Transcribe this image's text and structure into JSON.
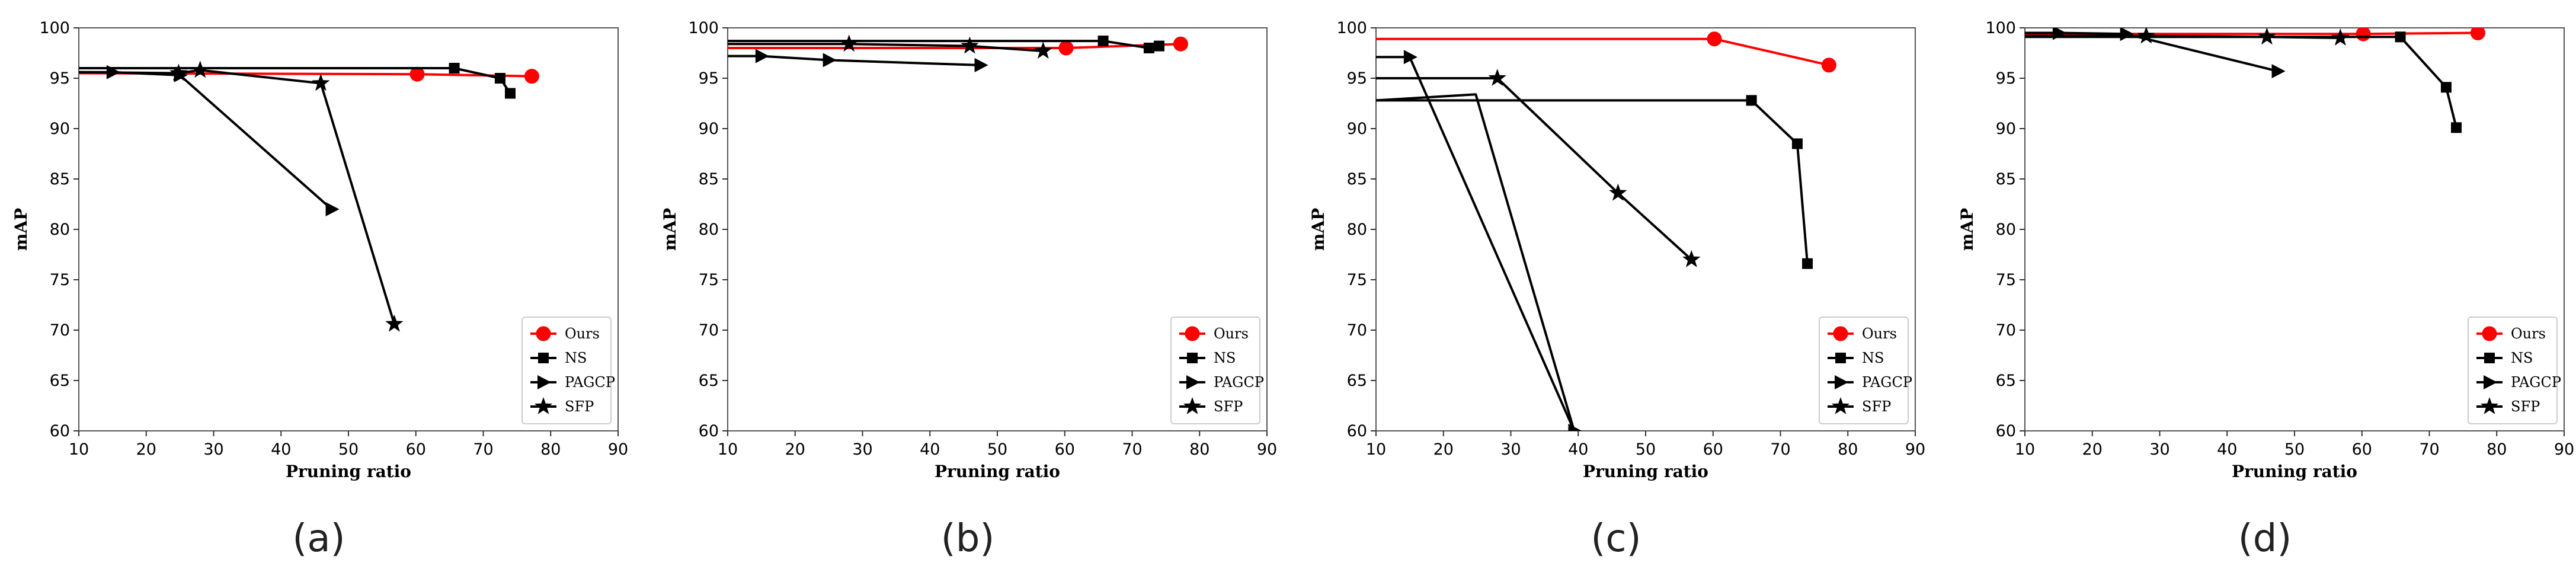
{
  "chart_data": [
    {
      "type": "line",
      "caption": "(a)",
      "xlabel": "Pruning ratio",
      "ylabel": "mAP",
      "xlim": [
        10,
        90
      ],
      "ylim": [
        60,
        100
      ],
      "xticks": [
        10,
        20,
        30,
        40,
        50,
        60,
        70,
        80,
        90
      ],
      "yticks": [
        60,
        65,
        70,
        75,
        80,
        85,
        90,
        95,
        100
      ],
      "legend": "bottom-right",
      "series": [
        {
          "name": "Ours",
          "marker": "circle",
          "color": "#ff0000",
          "x": [
            10,
            60.2,
            77.2
          ],
          "y": [
            95.5,
            95.4,
            95.2
          ]
        },
        {
          "name": "NS",
          "marker": "square",
          "color": "#000000",
          "x": [
            10,
            65.7,
            72.5,
            74
          ],
          "y": [
            96.0,
            96.0,
            95.0,
            93.5
          ]
        },
        {
          "name": "PAGCP",
          "marker": "triangle",
          "color": "#000000",
          "x": [
            10,
            15,
            25,
            47.5
          ],
          "y": [
            95.6,
            95.6,
            95.3,
            82.0
          ]
        },
        {
          "name": "SFP",
          "marker": "star",
          "color": "#000000",
          "x": [
            10,
            24.8,
            28,
            45.9,
            56.8
          ],
          "y": [
            95.6,
            95.5,
            95.8,
            94.5,
            70.6
          ]
        }
      ]
    },
    {
      "type": "line",
      "caption": "(b)",
      "xlabel": "Pruning ratio",
      "ylabel": "mAP",
      "xlim": [
        10,
        90
      ],
      "ylim": [
        60,
        100
      ],
      "xticks": [
        10,
        20,
        30,
        40,
        50,
        60,
        70,
        80,
        90
      ],
      "yticks": [
        60,
        65,
        70,
        75,
        80,
        85,
        90,
        95,
        100
      ],
      "legend": "bottom-right",
      "series": [
        {
          "name": "Ours",
          "marker": "circle",
          "color": "#ff0000",
          "x": [
            10,
            60.2,
            77.2
          ],
          "y": [
            98.0,
            98.0,
            98.4
          ]
        },
        {
          "name": "NS",
          "marker": "square",
          "color": "#000000",
          "x": [
            10,
            65.7,
            72.5,
            74
          ],
          "y": [
            98.7,
            98.7,
            98.0,
            98.2
          ]
        },
        {
          "name": "PAGCP",
          "marker": "triangle",
          "color": "#000000",
          "x": [
            10,
            15,
            25,
            47.5
          ],
          "y": [
            97.2,
            97.2,
            96.8,
            96.3
          ]
        },
        {
          "name": "SFP",
          "marker": "star",
          "color": "#000000",
          "x": [
            10,
            28,
            45.9,
            56.8
          ],
          "y": [
            98.4,
            98.4,
            98.2,
            97.7
          ]
        }
      ]
    },
    {
      "type": "line",
      "caption": "(c)",
      "xlabel": "Pruning ratio",
      "ylabel": "mAP",
      "xlim": [
        10,
        90
      ],
      "ylim": [
        60,
        100
      ],
      "xticks": [
        10,
        20,
        30,
        40,
        50,
        60,
        70,
        80,
        90
      ],
      "yticks": [
        60,
        65,
        70,
        75,
        80,
        85,
        90,
        95,
        100
      ],
      "legend": "bottom-right",
      "series": [
        {
          "name": "Ours",
          "marker": "circle",
          "color": "#ff0000",
          "x": [
            10,
            60.2,
            77.2
          ],
          "y": [
            98.9,
            98.9,
            96.3
          ]
        },
        {
          "name": "NS",
          "marker": "square",
          "color": "#000000",
          "x": [
            10,
            65.7,
            72.5,
            74
          ],
          "y": [
            92.8,
            92.8,
            88.5,
            76.6
          ]
        },
        {
          "name": "PAGCP",
          "marker": "triangle",
          "color": "#000000",
          "x": [
            10,
            15,
            39.4
          ],
          "y": [
            97.1,
            97.1,
            60.0
          ]
        },
        {
          "name": "SFP",
          "marker": "star",
          "color": "#000000",
          "x": [
            10,
            28,
            45.9,
            56.8
          ],
          "y": [
            95.0,
            95.0,
            83.6,
            77.0
          ]
        },
        {
          "name": "",
          "marker": "none",
          "color": "#000000",
          "x": [
            10,
            24.8,
            39.4
          ],
          "y": [
            92.8,
            93.4,
            60.0
          ]
        }
      ]
    },
    {
      "type": "line",
      "caption": "(d)",
      "xlabel": "Pruning ratio",
      "ylabel": "mAP",
      "xlim": [
        10,
        90
      ],
      "ylim": [
        60,
        100
      ],
      "xticks": [
        10,
        20,
        30,
        40,
        50,
        60,
        70,
        80,
        90
      ],
      "yticks": [
        60,
        65,
        70,
        75,
        80,
        85,
        90,
        95,
        100
      ],
      "legend": "bottom-right",
      "series": [
        {
          "name": "Ours",
          "marker": "circle",
          "color": "#ff0000",
          "x": [
            10,
            60.2,
            77.2
          ],
          "y": [
            99.4,
            99.4,
            99.5
          ]
        },
        {
          "name": "NS",
          "marker": "square",
          "color": "#000000",
          "x": [
            10,
            65.7,
            72.5,
            74
          ],
          "y": [
            99.1,
            99.1,
            94.1,
            90.1
          ]
        },
        {
          "name": "PAGCP",
          "marker": "triangle",
          "color": "#000000",
          "x": [
            10,
            15,
            25,
            47.5
          ],
          "y": [
            99.5,
            99.5,
            99.4,
            95.7
          ]
        },
        {
          "name": "SFP",
          "marker": "star",
          "color": "#000000",
          "x": [
            10,
            28,
            45.9,
            56.8
          ],
          "y": [
            99.2,
            99.2,
            99.1,
            99.0
          ]
        }
      ]
    }
  ]
}
